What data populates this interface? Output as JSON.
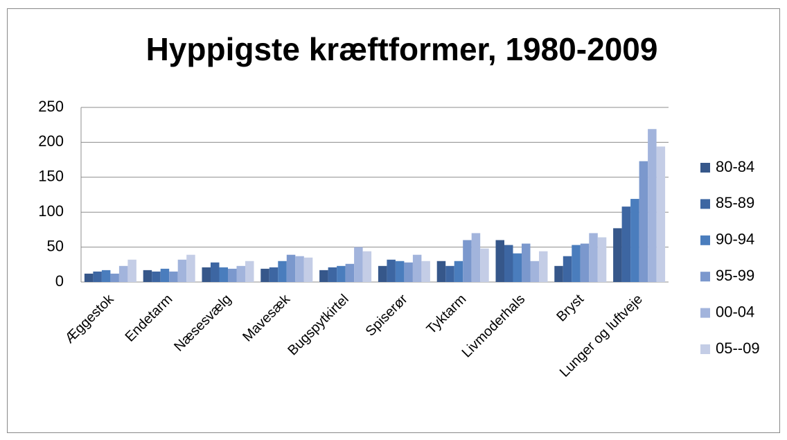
{
  "chart_data": {
    "type": "bar",
    "title": "Hyppigste kræftformer, 1980-2009",
    "categories": [
      "Æggestok",
      "Endetarm",
      "Næsesvælg",
      "Mavesæk",
      "Bugspytkirtel",
      "Spiserør",
      "Tyktarm",
      "Livmoderhals",
      "Bryst",
      "Lunger og luftveje"
    ],
    "series": [
      {
        "name": "80-84",
        "color": "#36578a",
        "values": [
          12,
          17,
          21,
          19,
          17,
          23,
          30,
          60,
          23,
          77
        ]
      },
      {
        "name": "85-89",
        "color": "#3d66a2",
        "values": [
          15,
          15,
          28,
          21,
          21,
          32,
          23,
          53,
          37,
          108
        ]
      },
      {
        "name": "90-94",
        "color": "#4a7dbd",
        "values": [
          17,
          19,
          21,
          30,
          23,
          30,
          30,
          41,
          53,
          119
        ]
      },
      {
        "name": "95-99",
        "color": "#7b98cd",
        "values": [
          12,
          15,
          19,
          39,
          26,
          28,
          60,
          55,
          55,
          173
        ]
      },
      {
        "name": "00-04",
        "color": "#a2b4dc",
        "values": [
          23,
          32,
          23,
          37,
          50,
          39,
          70,
          30,
          70,
          219
        ]
      },
      {
        "name": "05--09",
        "color": "#c4cde6",
        "values": [
          32,
          39,
          30,
          35,
          44,
          30,
          48,
          44,
          64,
          194
        ]
      }
    ],
    "ylim": [
      0,
      250
    ],
    "yticks": [
      0,
      50,
      100,
      150,
      200,
      250
    ],
    "grid": true,
    "legend": "right"
  }
}
